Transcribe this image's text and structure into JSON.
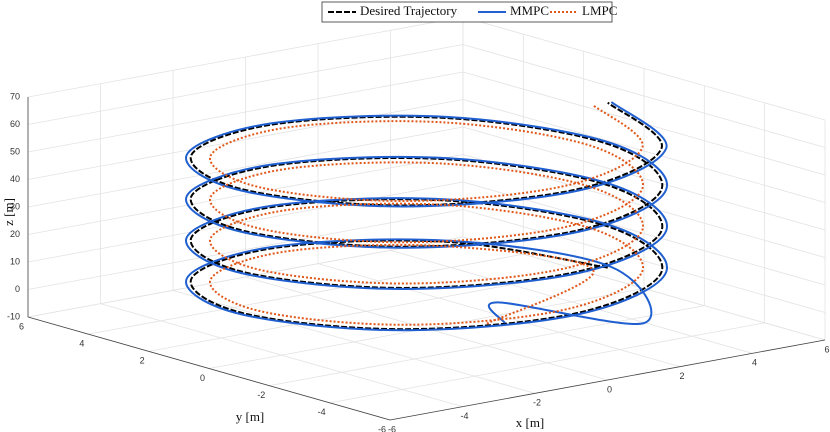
{
  "chart_data": {
    "type": "line3d",
    "xlabel": "x [m]",
    "ylabel": "y [m]",
    "zlabel": "z [m]",
    "xlim": [
      -6,
      6
    ],
    "ylim": [
      -6,
      6
    ],
    "zlim": [
      -10,
      70
    ],
    "xticks": [
      -6,
      -4,
      -2,
      0,
      2,
      4,
      6
    ],
    "yticks": [
      -6,
      -4,
      -2,
      0,
      2,
      4,
      6
    ],
    "zticks": [
      -10,
      0,
      10,
      20,
      30,
      40,
      50,
      60,
      70
    ],
    "grid": true,
    "legend": "top",
    "series": [
      {
        "name": "Desired Trajectory",
        "color": "#000000",
        "linestyle": "--",
        "x": [
          5,
          3.54,
          0,
          -3.54,
          -5,
          -3.54,
          0,
          3.54,
          5,
          3.54,
          0,
          -3.54,
          -5,
          -3.54,
          0,
          3.54,
          5,
          3.54,
          0,
          -3.54,
          -5,
          -3.54,
          0,
          3.54,
          5,
          3.54,
          0,
          -3.54,
          -5,
          -3.54,
          0,
          3.54,
          5
        ],
        "y": [
          0,
          3.54,
          5,
          3.54,
          0,
          -3.54,
          -5,
          -3.54,
          0,
          3.54,
          5,
          3.54,
          0,
          -3.54,
          -5,
          -3.54,
          0,
          3.54,
          5,
          3.54,
          0,
          -3.54,
          -5,
          -3.54,
          0,
          3.54,
          5,
          3.54,
          0,
          -3.54,
          -5,
          -3.54,
          0
        ],
        "z": [
          0,
          1.875,
          3.75,
          5.625,
          7.5,
          9.375,
          11.25,
          13.125,
          15,
          16.875,
          18.75,
          20.625,
          22.5,
          24.375,
          26.25,
          28.125,
          30,
          31.875,
          33.75,
          35.625,
          37.5,
          39.375,
          41.25,
          43.125,
          45,
          46.875,
          48.75,
          50.625,
          52.5,
          54.375,
          56.25,
          58.125,
          60
        ]
      },
      {
        "name": "MMPC",
        "color": "#1f5fd0",
        "linestyle": "-",
        "x": [
          0.5,
          0.3,
          2.5,
          5.1,
          3.61,
          0,
          -3.61,
          -5.1,
          -3.61,
          0,
          3.61,
          5.1,
          3.61,
          0,
          -3.61,
          -5.1,
          -3.61,
          0,
          3.61,
          5.1,
          3.61,
          0,
          -3.61,
          -5.1,
          -3.61,
          0,
          3.61,
          5.1,
          3.61,
          0,
          -3.61,
          -5.1,
          -3.61,
          0,
          3.61,
          5.1
        ],
        "y": [
          -2,
          -2,
          -4.2,
          0,
          3.61,
          5.1,
          3.61,
          0,
          -3.61,
          -5.1,
          -3.61,
          0,
          3.61,
          5.1,
          3.61,
          0,
          -3.61,
          -5.1,
          -3.61,
          0,
          3.61,
          5.1,
          3.61,
          0,
          -3.61,
          -5.1,
          -3.61,
          0,
          3.61,
          5.1,
          3.61,
          0,
          -3.61,
          -5.1,
          -3.61,
          0
        ],
        "z": [
          -3,
          5,
          -1,
          0,
          1.875,
          3.75,
          5.625,
          7.5,
          9.375,
          11.25,
          13.125,
          15,
          16.875,
          18.75,
          20.625,
          22.5,
          24.375,
          26.25,
          28.125,
          30,
          31.875,
          33.75,
          35.625,
          37.5,
          39.375,
          41.25,
          43.125,
          45,
          46.875,
          48.75,
          50.625,
          52.5,
          54.375,
          56.25,
          58.125,
          60
        ]
      },
      {
        "name": "LMPC",
        "color": "#e0581a",
        "linestyle": ":",
        "x": [
          0,
          4.6,
          3.25,
          0,
          -3.25,
          -4.6,
          -3.25,
          0,
          3.25,
          4.6,
          3.25,
          0,
          -3.25,
          -4.6,
          -3.25,
          0,
          3.25,
          4.6,
          3.25,
          0,
          -3.25,
          -4.6,
          -3.25,
          0,
          3.25,
          4.6,
          3.25,
          0,
          -3.25,
          -4.6,
          -3.25,
          0,
          3.25,
          4.6
        ],
        "y": [
          -2,
          0,
          3.25,
          4.6,
          3.25,
          0,
          -3.25,
          -4.6,
          -3.25,
          0,
          3.25,
          4.6,
          3.25,
          0,
          -3.25,
          -4.6,
          -3.25,
          0,
          3.25,
          4.6,
          3.25,
          0,
          -3.25,
          -4.6,
          -3.25,
          0,
          3.25,
          4.6,
          3.25,
          0,
          -3.25,
          -4.6,
          -3.25,
          0
        ],
        "z": [
          -2,
          0,
          1.875,
          3.75,
          5.625,
          7.5,
          9.375,
          11.25,
          13.125,
          15,
          16.875,
          18.75,
          20.625,
          22.5,
          24.375,
          26.25,
          28.125,
          30,
          31.875,
          33.75,
          35.625,
          37.5,
          39.375,
          41.25,
          43.125,
          45,
          46.875,
          48.75,
          50.625,
          52.5,
          54.375,
          56.25,
          58.125,
          60
        ]
      }
    ]
  }
}
